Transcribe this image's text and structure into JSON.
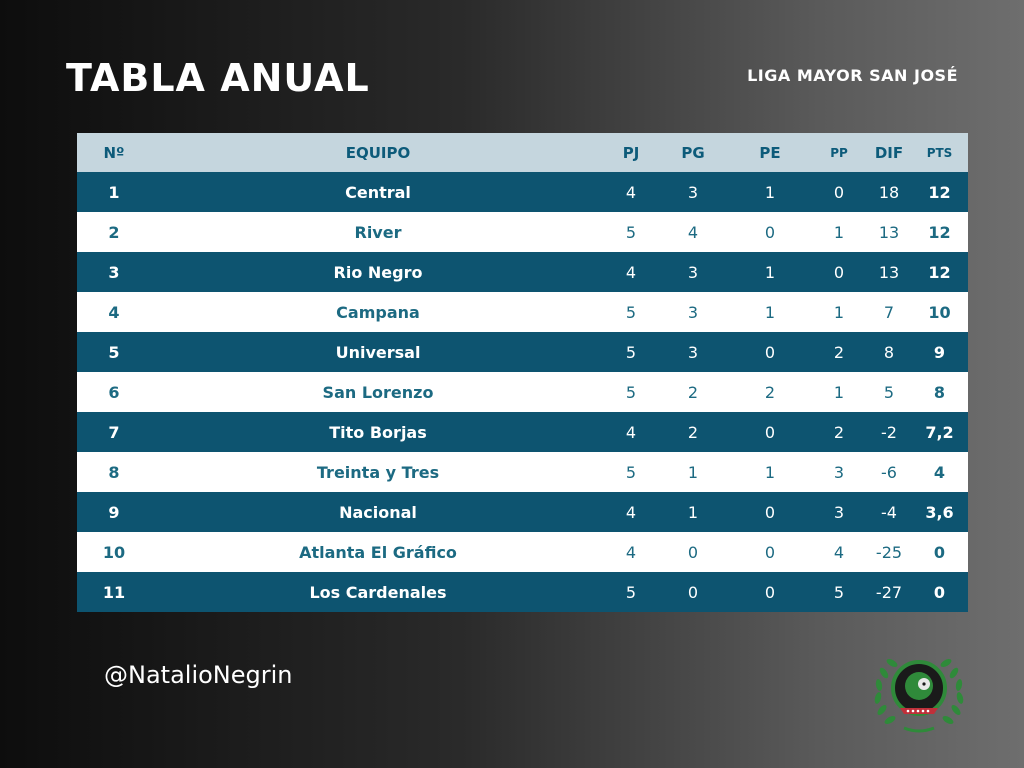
{
  "header": {
    "title": "TABLA ANUAL",
    "subtitle": "LIGA MAYOR SAN JOSÉ"
  },
  "table": {
    "columns": [
      "Nº",
      "EQUIPO",
      "PJ",
      "PG",
      "PE",
      "PP",
      "DIF",
      "PTS"
    ],
    "rows": [
      {
        "pos": "1",
        "team": "Central",
        "pj": "4",
        "pg": "3",
        "pe": "1",
        "pp": "0",
        "dif": "18",
        "pts": "12"
      },
      {
        "pos": "2",
        "team": "River",
        "pj": "5",
        "pg": "4",
        "pe": "0",
        "pp": "1",
        "dif": "13",
        "pts": "12"
      },
      {
        "pos": "3",
        "team": "Rio Negro",
        "pj": "4",
        "pg": "3",
        "pe": "1",
        "pp": "0",
        "dif": "13",
        "pts": "12"
      },
      {
        "pos": "4",
        "team": "Campana",
        "pj": "5",
        "pg": "3",
        "pe": "1",
        "pp": "1",
        "dif": "7",
        "pts": "10"
      },
      {
        "pos": "5",
        "team": "Universal",
        "pj": "5",
        "pg": "3",
        "pe": "0",
        "pp": "2",
        "dif": "8",
        "pts": "9"
      },
      {
        "pos": "6",
        "team": "San Lorenzo",
        "pj": "5",
        "pg": "2",
        "pe": "2",
        "pp": "1",
        "dif": "5",
        "pts": "8"
      },
      {
        "pos": "7",
        "team": "Tito Borjas",
        "pj": "4",
        "pg": "2",
        "pe": "0",
        "pp": "2",
        "dif": "-2",
        "pts": "7,2"
      },
      {
        "pos": "8",
        "team": "Treinta y Tres",
        "pj": "5",
        "pg": "1",
        "pe": "1",
        "pp": "3",
        "dif": "-6",
        "pts": "4"
      },
      {
        "pos": "9",
        "team": "Nacional",
        "pj": "4",
        "pg": "1",
        "pe": "0",
        "pp": "3",
        "dif": "-4",
        "pts": "3,6"
      },
      {
        "pos": "10",
        "team": "Atlanta El Gráfico",
        "pj": "4",
        "pg": "0",
        "pe": "0",
        "pp": "4",
        "dif": "-25",
        "pts": "0"
      },
      {
        "pos": "11",
        "team": "Los Cardenales",
        "pj": "5",
        "pg": "0",
        "pe": "0",
        "pp": "5",
        "dif": "-27",
        "pts": "0"
      }
    ]
  },
  "footer": {
    "handle": "@NatalioNegrin",
    "logo_icon": "league-crest-logo"
  },
  "colors": {
    "header_row": "#c5d6de",
    "dark_row": "#0d5470",
    "light_row": "#ffffff",
    "accent_text": "#1c6a82"
  }
}
